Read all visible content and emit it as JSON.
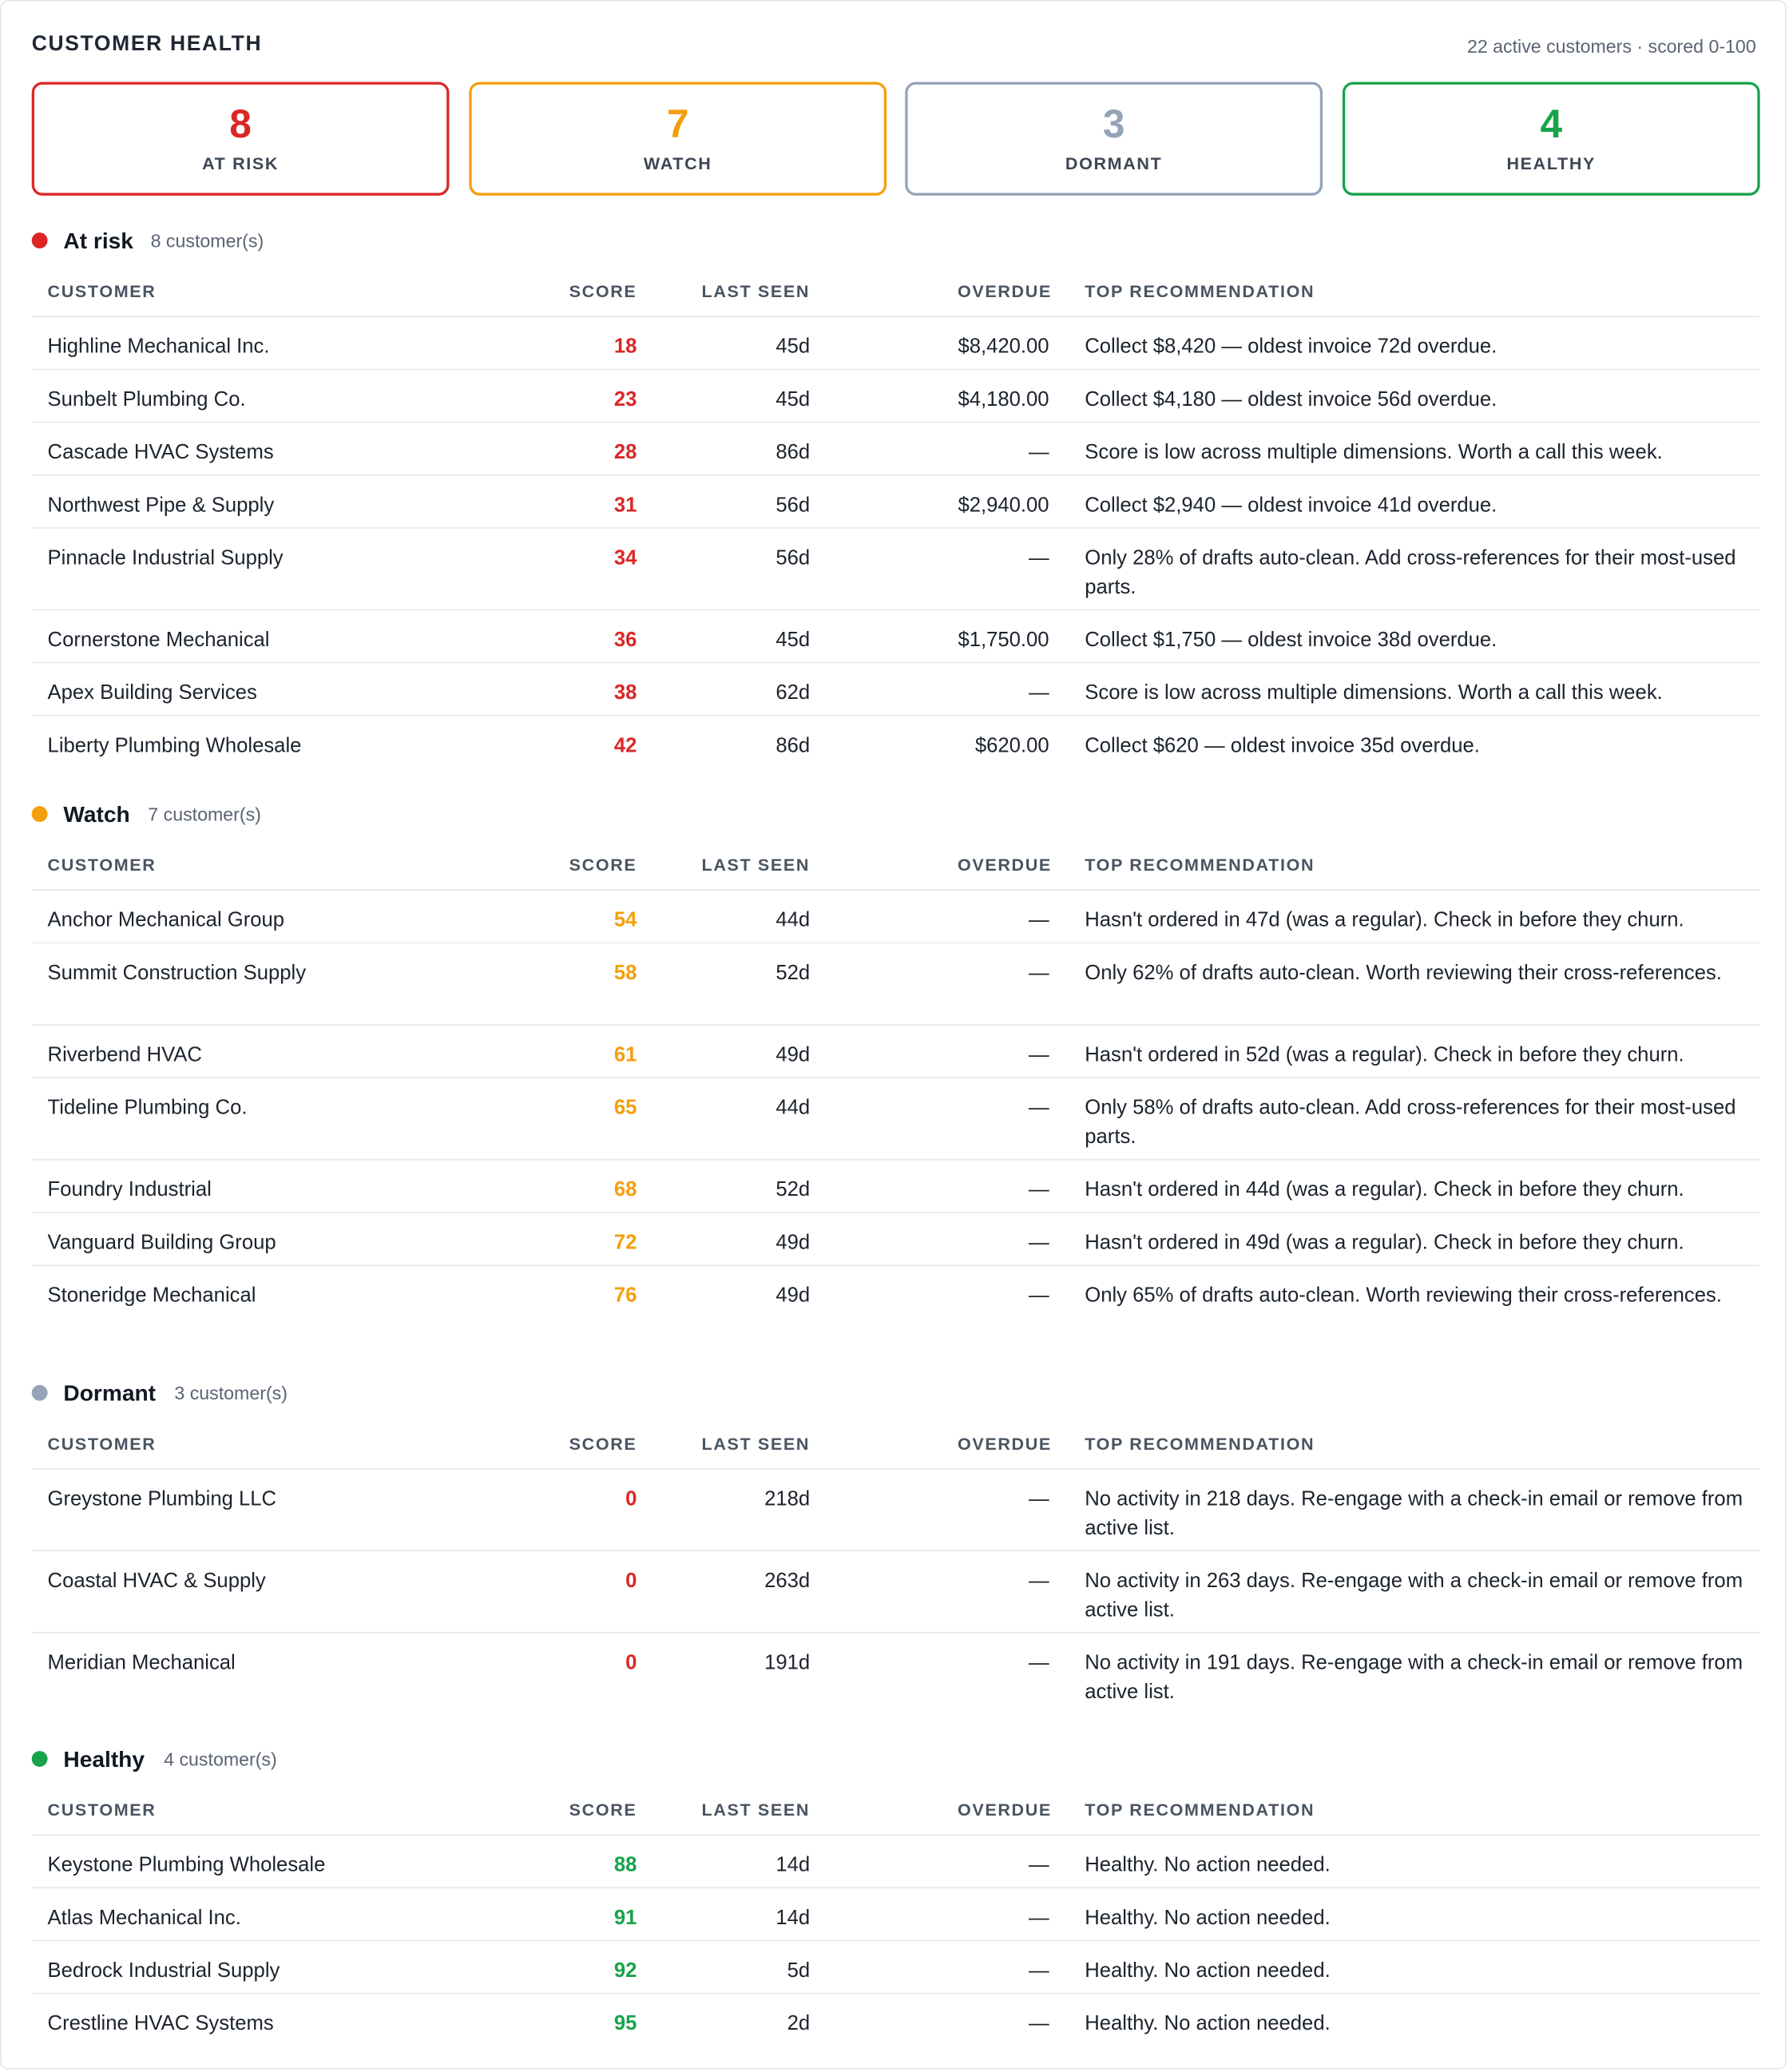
{
  "header": {
    "title": "CUSTOMER HEALTH",
    "subtitle": "22 active customers · scored 0-100"
  },
  "colors": {
    "at_risk": "#dc2626",
    "watch": "#f59e0b",
    "dormant": "#94a3b8",
    "healthy": "#16a34a"
  },
  "cards": [
    {
      "count": "8",
      "label": "AT RISK",
      "color": "#dc2626"
    },
    {
      "count": "7",
      "label": "WATCH",
      "color": "#f59e0b"
    },
    {
      "count": "3",
      "label": "DORMANT",
      "color": "#94a3b8"
    },
    {
      "count": "4",
      "label": "HEALTHY",
      "color": "#16a34a"
    }
  ],
  "columns": {
    "customer": "CUSTOMER",
    "score": "SCORE",
    "last_seen": "LAST SEEN",
    "overdue": "OVERDUE",
    "recommendation": "TOP RECOMMENDATION"
  },
  "sections": [
    {
      "name": "At risk",
      "count": "8 customer(s)",
      "color": "#dc2626",
      "rows": [
        {
          "customer": "Highline Mechanical Inc.",
          "score": "18",
          "last_seen": "45d",
          "overdue": "$8,420.00",
          "recommendation": "Collect $8,420 — oldest invoice 72d overdue."
        },
        {
          "customer": "Sunbelt Plumbing Co.",
          "score": "23",
          "last_seen": "45d",
          "overdue": "$4,180.00",
          "recommendation": "Collect $4,180 — oldest invoice 56d overdue."
        },
        {
          "customer": "Cascade HVAC Systems",
          "score": "28",
          "last_seen": "86d",
          "overdue": "—",
          "recommendation": "Score is low across multiple dimensions. Worth a call this week."
        },
        {
          "customer": "Northwest Pipe & Supply",
          "score": "31",
          "last_seen": "56d",
          "overdue": "$2,940.00",
          "recommendation": "Collect $2,940 — oldest invoice 41d overdue."
        },
        {
          "customer": "Pinnacle Industrial Supply",
          "score": "34",
          "last_seen": "56d",
          "overdue": "—",
          "recommendation": "Only 28% of drafts auto-clean. Add cross-references for their most-used parts."
        },
        {
          "customer": "Cornerstone Mechanical",
          "score": "36",
          "last_seen": "45d",
          "overdue": "$1,750.00",
          "recommendation": "Collect $1,750 — oldest invoice 38d overdue."
        },
        {
          "customer": "Apex Building Services",
          "score": "38",
          "last_seen": "62d",
          "overdue": "—",
          "recommendation": "Score is low across multiple dimensions. Worth a call this week."
        },
        {
          "customer": "Liberty Plumbing Wholesale",
          "score": "42",
          "last_seen": "86d",
          "overdue": "$620.00",
          "recommendation": "Collect $620 — oldest invoice 35d overdue."
        }
      ]
    },
    {
      "name": "Watch",
      "count": "7 customer(s)",
      "color": "#f59e0b",
      "rows": [
        {
          "customer": "Anchor Mechanical Group",
          "score": "54",
          "last_seen": "44d",
          "overdue": "—",
          "recommendation": "Hasn't ordered in 47d (was a regular). Check in before they churn."
        },
        {
          "customer": "Summit Construction Supply",
          "score": "58",
          "last_seen": "52d",
          "overdue": "—",
          "recommendation": "Only 62% of drafts auto-clean. Worth reviewing their cross-references."
        },
        {
          "customer": "Riverbend HVAC",
          "score": "61",
          "last_seen": "49d",
          "overdue": "—",
          "recommendation": "Hasn't ordered in 52d (was a regular). Check in before they churn."
        },
        {
          "customer": "Tideline Plumbing Co.",
          "score": "65",
          "last_seen": "44d",
          "overdue": "—",
          "recommendation": "Only 58% of drafts auto-clean. Add cross-references for their most-used parts."
        },
        {
          "customer": "Foundry Industrial",
          "score": "68",
          "last_seen": "52d",
          "overdue": "—",
          "recommendation": "Hasn't ordered in 44d (was a regular). Check in before they churn."
        },
        {
          "customer": "Vanguard Building Group",
          "score": "72",
          "last_seen": "49d",
          "overdue": "—",
          "recommendation": "Hasn't ordered in 49d (was a regular). Check in before they churn."
        },
        {
          "customer": "Stoneridge Mechanical",
          "score": "76",
          "last_seen": "49d",
          "overdue": "—",
          "recommendation": "Only 65% of drafts auto-clean. Worth reviewing their cross-references."
        }
      ]
    },
    {
      "name": "Dormant",
      "count": "3 customer(s)",
      "color": "#94a3b8",
      "score_color": "#dc2626",
      "rows": [
        {
          "customer": "Greystone Plumbing LLC",
          "score": "0",
          "last_seen": "218d",
          "overdue": "—",
          "recommendation": "No activity in 218 days. Re-engage with a check-in email or remove from active list."
        },
        {
          "customer": "Coastal HVAC & Supply",
          "score": "0",
          "last_seen": "263d",
          "overdue": "—",
          "recommendation": "No activity in 263 days. Re-engage with a check-in email or remove from active list."
        },
        {
          "customer": "Meridian Mechanical",
          "score": "0",
          "last_seen": "191d",
          "overdue": "—",
          "recommendation": "No activity in 191 days. Re-engage with a check-in email or remove from active list."
        }
      ]
    },
    {
      "name": "Healthy",
      "count": "4 customer(s)",
      "color": "#16a34a",
      "rows": [
        {
          "customer": "Keystone Plumbing Wholesale",
          "score": "88",
          "last_seen": "14d",
          "overdue": "—",
          "recommendation": "Healthy. No action needed."
        },
        {
          "customer": "Atlas Mechanical Inc.",
          "score": "91",
          "last_seen": "14d",
          "overdue": "—",
          "recommendation": "Healthy. No action needed."
        },
        {
          "customer": "Bedrock Industrial Supply",
          "score": "92",
          "last_seen": "5d",
          "overdue": "—",
          "recommendation": "Healthy. No action needed."
        },
        {
          "customer": "Crestline HVAC Systems",
          "score": "95",
          "last_seen": "2d",
          "overdue": "—",
          "recommendation": "Healthy. No action needed."
        }
      ]
    }
  ]
}
